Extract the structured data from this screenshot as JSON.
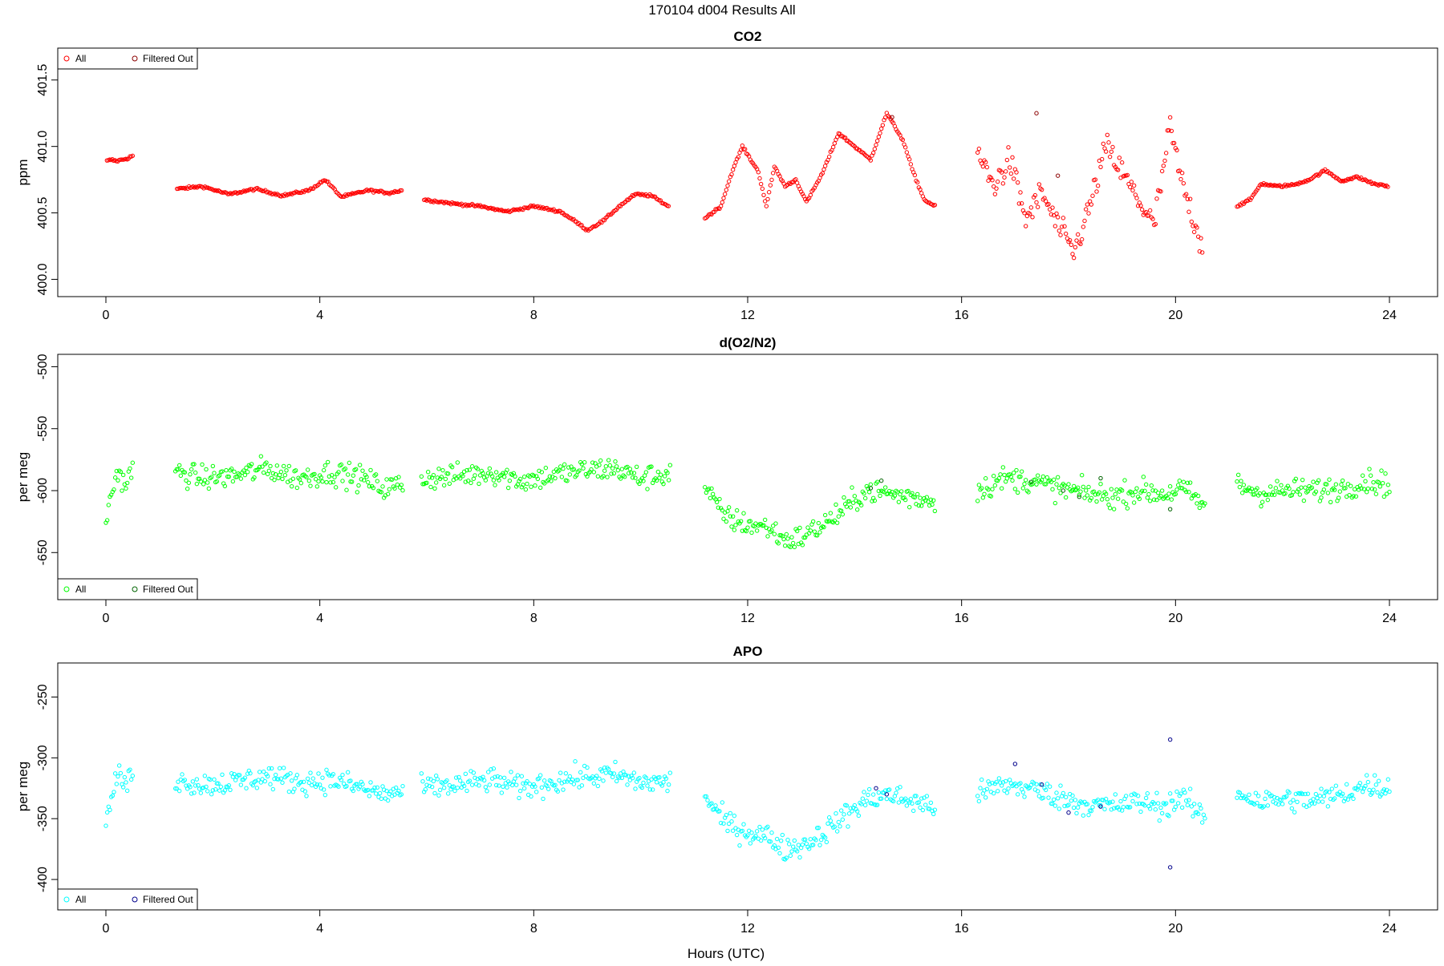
{
  "figure": {
    "title": "170104   d004   Results All",
    "xlabel": "Hours (UTC)"
  },
  "chart_data": [
    {
      "type": "scatter",
      "title": "CO2",
      "ylabel": "ppm",
      "xlim": [
        -0.9,
        24.9
      ],
      "ylim": [
        399.87,
        401.74
      ],
      "xticks": [
        0,
        4,
        8,
        12,
        16,
        20,
        24
      ],
      "xtick_labels": [
        "0",
        "4",
        "8",
        "12",
        "16",
        "20",
        "24"
      ],
      "yticks": [
        400.0,
        400.5,
        401.0,
        401.5
      ],
      "ytick_labels": [
        "400.0",
        "400.5",
        "401.0",
        "401.5"
      ],
      "legend": {
        "placement": "top-left",
        "entries": [
          "All",
          "Filtered Out"
        ]
      },
      "series": [
        {
          "name": "All",
          "color": "#ff0000",
          "segments": [
            {
              "x": [
                0.02,
                0.1,
                0.2,
                0.3,
                0.4,
                0.5
              ],
              "y": [
                400.89,
                400.9,
                400.89,
                400.9,
                400.91,
                400.93
              ]
            },
            {
              "x": [
                1.33,
                1.8,
                2.3,
                2.8,
                3.3,
                3.8,
                4.1,
                4.4,
                4.9,
                5.3,
                5.53
              ],
              "y": [
                400.68,
                400.7,
                400.64,
                400.68,
                400.63,
                400.67,
                400.75,
                400.62,
                400.67,
                400.65,
                400.67
              ]
            },
            {
              "x": [
                5.95,
                6.5,
                7.0,
                7.5,
                8.0,
                8.5,
                8.8,
                9.0,
                9.3,
                9.6,
                9.9,
                10.2,
                10.52
              ],
              "y": [
                400.6,
                400.57,
                400.55,
                400.51,
                400.55,
                400.51,
                400.43,
                400.37,
                400.44,
                400.55,
                400.64,
                400.63,
                400.55
              ]
            },
            {
              "x": [
                11.2,
                11.5,
                11.7,
                11.9,
                12.2,
                12.35,
                12.5,
                12.7,
                12.9,
                13.1,
                13.4,
                13.7,
                14.0,
                14.3,
                14.6,
                14.9,
                15.1,
                15.3,
                15.5
              ],
              "y": [
                400.46,
                400.55,
                400.8,
                401.0,
                400.81,
                400.55,
                400.85,
                400.7,
                400.75,
                400.58,
                400.8,
                401.1,
                401.0,
                400.9,
                401.25,
                401.05,
                400.8,
                400.6,
                400.55
              ]
            },
            {
              "x": [
                16.3,
                16.6,
                16.9,
                17.2,
                17.5,
                17.8,
                18.1,
                18.4,
                18.7,
                19.0,
                19.3,
                19.6,
                19.9,
                20.1,
                20.3,
                20.5
              ],
              "y": [
                400.95,
                400.7,
                400.9,
                400.45,
                400.65,
                400.4,
                400.2,
                400.55,
                401.0,
                400.8,
                400.6,
                400.4,
                401.15,
                400.75,
                400.5,
                400.25
              ]
            },
            {
              "x": [
                21.15,
                21.4,
                21.6,
                21.9,
                22.2,
                22.5,
                22.8,
                23.1,
                23.4,
                23.7,
                23.97
              ],
              "y": [
                400.55,
                400.6,
                400.72,
                400.7,
                400.71,
                400.75,
                400.82,
                400.74,
                400.77,
                400.72,
                400.7
              ]
            }
          ]
        },
        {
          "name": "Filtered Out",
          "color": "#8b0000",
          "x": [
            14.7,
            17.4,
            17.8
          ],
          "y": [
            401.22,
            401.25,
            400.78
          ]
        }
      ]
    },
    {
      "type": "scatter",
      "title": "d(O2/N2)",
      "ylabel": "per meg",
      "xlim": [
        -0.9,
        24.9
      ],
      "ylim": [
        -688,
        -490
      ],
      "xticks": [
        0,
        4,
        8,
        12,
        16,
        20,
        24
      ],
      "xtick_labels": [
        "0",
        "4",
        "8",
        "12",
        "16",
        "20",
        "24"
      ],
      "yticks": [
        -650,
        -600,
        -550,
        -500
      ],
      "ytick_labels": [
        "-650",
        "-600",
        "-550",
        "-500"
      ],
      "legend": {
        "placement": "bottom-left",
        "entries": [
          "All",
          "Filtered Out"
        ]
      },
      "series": [
        {
          "name": "All",
          "color": "#00ff00",
          "segments": [
            {
              "x": [
                0.0,
                0.2,
                0.4,
                0.5
              ],
              "y": [
                -625,
                -585,
                -595,
                -580
              ]
            },
            {
              "x": [
                1.3,
                1.8,
                2.4,
                3.0,
                3.6,
                4.2,
                4.8,
                5.2,
                5.55
              ],
              "y": [
                -585,
                -590,
                -588,
                -582,
                -590,
                -585,
                -590,
                -598,
                -595
              ]
            },
            {
              "x": [
                5.9,
                6.6,
                7.2,
                7.8,
                8.3,
                8.9,
                9.5,
                10.0,
                10.55
              ],
              "y": [
                -590,
                -588,
                -585,
                -592,
                -588,
                -584,
                -582,
                -590,
                -586
              ]
            },
            {
              "x": [
                11.2,
                11.5,
                11.8,
                12.1,
                12.4,
                12.7,
                13.0,
                13.3,
                13.6,
                13.9,
                14.2,
                14.6,
                15.0,
                15.5
              ],
              "y": [
                -596,
                -618,
                -625,
                -628,
                -630,
                -640,
                -638,
                -630,
                -622,
                -612,
                -600,
                -602,
                -605,
                -608
              ]
            },
            {
              "x": [
                16.3,
                16.8,
                17.3,
                17.8,
                18.3,
                18.8,
                19.3,
                19.8,
                20.1,
                20.55
              ],
              "y": [
                -600,
                -590,
                -592,
                -598,
                -602,
                -605,
                -600,
                -603,
                -598,
                -612
              ]
            },
            {
              "x": [
                21.15,
                21.6,
                22.1,
                22.6,
                23.1,
                23.6,
                24.0
              ],
              "y": [
                -595,
                -602,
                -600,
                -600,
                -598,
                -592,
                -595
              ]
            }
          ]
        },
        {
          "name": "Filtered Out",
          "color": "#006400",
          "x": [
            14.3,
            14.5,
            17.3,
            17.9,
            18.2,
            18.6,
            19.9
          ],
          "y": [
            -598,
            -592,
            -593,
            -600,
            -605,
            -590,
            -615
          ]
        }
      ]
    },
    {
      "type": "scatter",
      "title": "APO",
      "ylabel": "per meg",
      "xlim": [
        -0.9,
        24.9
      ],
      "ylim": [
        -425,
        -222
      ],
      "xticks": [
        0,
        4,
        8,
        12,
        16,
        20,
        24
      ],
      "xtick_labels": [
        "0",
        "4",
        "8",
        "12",
        "16",
        "20",
        "24"
      ],
      "yticks": [
        -400,
        -350,
        -300,
        -250
      ],
      "ytick_labels": [
        "-400",
        "-350",
        "-300",
        "-250"
      ],
      "legend": {
        "placement": "bottom-left",
        "entries": [
          "All",
          "Filtered Out"
        ]
      },
      "series": [
        {
          "name": "All",
          "color": "#00ffff",
          "segments": [
            {
              "x": [
                0.0,
                0.2,
                0.4,
                0.5
              ],
              "y": [
                -355,
                -315,
                -322,
                -310
              ]
            },
            {
              "x": [
                1.3,
                1.8,
                2.4,
                3.0,
                3.6,
                4.2,
                4.8,
                5.2,
                5.55
              ],
              "y": [
                -318,
                -322,
                -320,
                -315,
                -320,
                -318,
                -325,
                -330,
                -328
              ]
            },
            {
              "x": [
                5.9,
                6.6,
                7.2,
                7.8,
                8.3,
                8.9,
                9.5,
                10.0,
                10.55
              ],
              "y": [
                -325,
                -322,
                -318,
                -325,
                -320,
                -316,
                -314,
                -320,
                -320
              ]
            },
            {
              "x": [
                11.2,
                11.5,
                11.8,
                12.1,
                12.4,
                12.7,
                13.0,
                13.3,
                13.6,
                13.9,
                14.2,
                14.6,
                15.0,
                15.5
              ],
              "y": [
                -330,
                -350,
                -358,
                -362,
                -365,
                -375,
                -372,
                -365,
                -355,
                -345,
                -335,
                -330,
                -335,
                -340
              ]
            },
            {
              "x": [
                16.3,
                16.8,
                17.3,
                17.8,
                18.3,
                18.8,
                19.3,
                19.8,
                20.1,
                20.55
              ],
              "y": [
                -330,
                -322,
                -325,
                -332,
                -338,
                -340,
                -336,
                -340,
                -332,
                -350
              ]
            },
            {
              "x": [
                21.15,
                21.6,
                22.1,
                22.6,
                23.1,
                23.6,
                24.0
              ],
              "y": [
                -328,
                -336,
                -334,
                -335,
                -330,
                -322,
                -325
              ]
            }
          ]
        },
        {
          "name": "Filtered Out",
          "color": "#00008b",
          "x": [
            14.4,
            14.6,
            17.0,
            17.5,
            18.0,
            18.6,
            19.9,
            19.9
          ],
          "y": [
            -325,
            -330,
            -305,
            -322,
            -345,
            -340,
            -285,
            -390
          ]
        }
      ]
    }
  ]
}
